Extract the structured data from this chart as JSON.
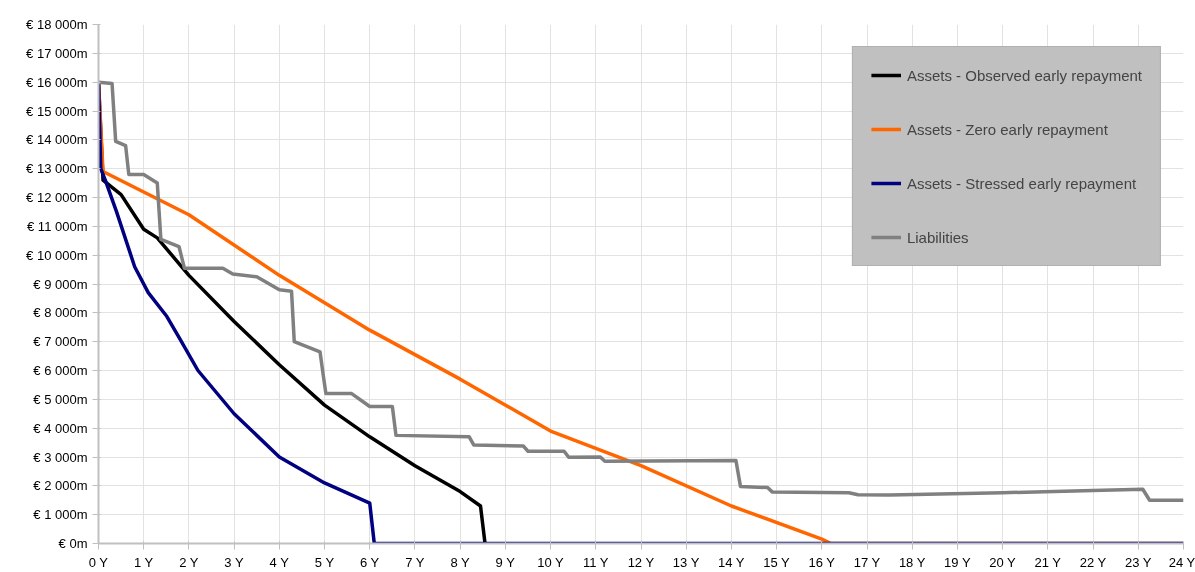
{
  "chart_data": {
    "type": "line",
    "xlim": [
      0,
      24
    ],
    "ylim": [
      0,
      18000
    ],
    "xticks": [
      {
        "value": 0,
        "label": "0 Y"
      },
      {
        "value": 1,
        "label": "1 Y"
      },
      {
        "value": 2,
        "label": "2 Y"
      },
      {
        "value": 3,
        "label": "3 Y"
      },
      {
        "value": 4,
        "label": "4 Y"
      },
      {
        "value": 5,
        "label": "5 Y"
      },
      {
        "value": 6,
        "label": "6 Y"
      },
      {
        "value": 7,
        "label": "7 Y"
      },
      {
        "value": 8,
        "label": "8 Y"
      },
      {
        "value": 9,
        "label": "9 Y"
      },
      {
        "value": 10,
        "label": "10 Y"
      },
      {
        "value": 11,
        "label": "11 Y"
      },
      {
        "value": 12,
        "label": "12 Y"
      },
      {
        "value": 13,
        "label": "13 Y"
      },
      {
        "value": 14,
        "label": "14 Y"
      },
      {
        "value": 15,
        "label": "15 Y"
      },
      {
        "value": 16,
        "label": "16 Y"
      },
      {
        "value": 17,
        "label": "17 Y"
      },
      {
        "value": 18,
        "label": "18 Y"
      },
      {
        "value": 19,
        "label": "19 Y"
      },
      {
        "value": 20,
        "label": "20 Y"
      },
      {
        "value": 21,
        "label": "21 Y"
      },
      {
        "value": 22,
        "label": "22 Y"
      },
      {
        "value": 23,
        "label": "23 Y"
      },
      {
        "value": 24,
        "label": "24 Y"
      }
    ],
    "yticks": [
      {
        "value": 0,
        "label": "€ 0m"
      },
      {
        "value": 1000,
        "label": "€ 1 000m"
      },
      {
        "value": 2000,
        "label": "€ 2 000m"
      },
      {
        "value": 3000,
        "label": "€ 3 000m"
      },
      {
        "value": 4000,
        "label": "€ 4 000m"
      },
      {
        "value": 5000,
        "label": "€ 5 000m"
      },
      {
        "value": 6000,
        "label": "€ 6 000m"
      },
      {
        "value": 7000,
        "label": "€ 7 000m"
      },
      {
        "value": 8000,
        "label": "€ 8 000m"
      },
      {
        "value": 9000,
        "label": "€ 9 000m"
      },
      {
        "value": 10000,
        "label": "€ 10 000m"
      },
      {
        "value": 11000,
        "label": "€ 11 000m"
      },
      {
        "value": 12000,
        "label": "€ 12 000m"
      },
      {
        "value": 13000,
        "label": "€ 13 000m"
      },
      {
        "value": 14000,
        "label": "€ 14 000m"
      },
      {
        "value": 15000,
        "label": "€ 15 000m"
      },
      {
        "value": 16000,
        "label": "€ 16 000m"
      },
      {
        "value": 17000,
        "label": "€ 17 000m"
      },
      {
        "value": 18000,
        "label": "€ 18 000m"
      }
    ],
    "grid": true,
    "legend": "top right",
    "line_style": "solid",
    "series": [
      {
        "name": "Assets - Observed early repayment",
        "color": "#000000",
        "x": [
          0,
          0.1,
          0.5,
          1,
          1.3,
          2,
          3,
          4,
          5,
          6,
          7,
          8,
          8.45,
          8.55
        ],
        "values": [
          16000,
          12600,
          12100,
          10900,
          10600,
          9300,
          7700,
          6200,
          4800,
          3700,
          2700,
          1800,
          1300,
          0
        ]
      },
      {
        "name": "Assets - Zero early repayment",
        "color": "#ff6600",
        "x": [
          0,
          0.1,
          2,
          4,
          6,
          8,
          10,
          12,
          14,
          16,
          16.2,
          24
        ],
        "values": [
          16000,
          12900,
          11400,
          9300,
          7400,
          5700,
          3900,
          2700,
          1300,
          150,
          0,
          0
        ]
      },
      {
        "name": "Assets - Stressed early repayment",
        "color": "#000080",
        "x": [
          0,
          0.05,
          0.15,
          0.4,
          0.8,
          1.1,
          1.5,
          1.8,
          2.2,
          3,
          4,
          5,
          6,
          6.1,
          24
        ],
        "values": [
          16000,
          13000,
          12600,
          11500,
          9600,
          8700,
          7900,
          7100,
          6000,
          4500,
          3000,
          2100,
          1400,
          0,
          0
        ]
      },
      {
        "name": "Liabilities",
        "color": "#808080",
        "x": [
          0,
          0.3,
          0.38,
          0.6,
          0.67,
          1,
          1.3,
          1.38,
          1.78,
          1.9,
          2.75,
          2.97,
          3.5,
          4,
          4.27,
          4.33,
          4.9,
          4.97,
          5.03,
          5.6,
          6,
          6.5,
          6.58,
          8.2,
          8.3,
          9.4,
          9.5,
          10.3,
          10.4,
          11.1,
          11.2,
          14.1,
          14.2,
          14.8,
          14.9,
          16.6,
          16.8,
          17.5,
          20,
          22,
          23.1,
          23.25,
          24
        ],
        "values": [
          16000,
          15950,
          13950,
          13800,
          12800,
          12800,
          12500,
          10550,
          10300,
          9550,
          9550,
          9350,
          9250,
          8800,
          8750,
          7000,
          6650,
          5850,
          5200,
          5200,
          4750,
          4750,
          3750,
          3700,
          3420,
          3380,
          3200,
          3200,
          2990,
          3000,
          2850,
          2880,
          1980,
          1940,
          1790,
          1760,
          1690,
          1680,
          1760,
          1840,
          1880,
          1500,
          1500
        ]
      }
    ]
  }
}
